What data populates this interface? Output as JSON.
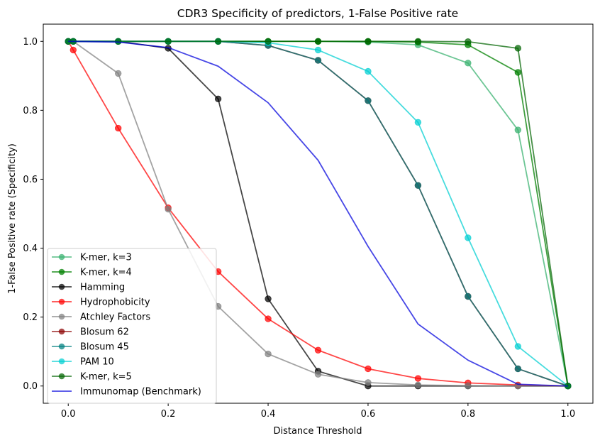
{
  "chart_data": {
    "type": "line",
    "title": "CDR3 Specificity of predictors, 1-False Positive rate",
    "xlabel": "Distance Threshold",
    "ylabel": "1-False Positive rate (Specificity)",
    "xlim": [
      -0.05,
      1.05
    ],
    "ylim": [
      -0.05,
      1.05
    ],
    "xticks": [
      0.0,
      0.2,
      0.4,
      0.6,
      0.8,
      1.0
    ],
    "xtick_labels": [
      "0.0",
      "0.2",
      "0.4",
      "0.6",
      "0.8",
      "1.0"
    ],
    "yticks": [
      0.0,
      0.2,
      0.4,
      0.6,
      0.8,
      1.0
    ],
    "ytick_labels": [
      "0.0",
      "0.2",
      "0.4",
      "0.6",
      "0.8",
      "1.0"
    ],
    "grid": false,
    "legend_position": "lower-left",
    "series": [
      {
        "name": "K-mer, k=3",
        "color": "#3cb371",
        "alpha": 0.75,
        "marker": true,
        "x": [
          0.0,
          0.01,
          0.1,
          0.2,
          0.3,
          0.4,
          0.5,
          0.6,
          0.7,
          0.8,
          0.9,
          1.0
        ],
        "y": [
          1.0,
          1.0,
          1.0,
          1.0,
          1.0,
          1.0,
          1.0,
          0.998,
          0.99,
          0.937,
          0.743,
          0.0
        ]
      },
      {
        "name": "K-mer, k=4",
        "color": "#008000",
        "alpha": 0.75,
        "marker": true,
        "x": [
          0.0,
          0.01,
          0.1,
          0.2,
          0.3,
          0.4,
          0.5,
          0.6,
          0.7,
          0.8,
          0.9,
          1.0
        ],
        "y": [
          1.0,
          1.0,
          1.0,
          1.0,
          1.0,
          1.0,
          1.0,
          1.0,
          0.998,
          0.99,
          0.91,
          0.0
        ]
      },
      {
        "name": "Hamming",
        "color": "#000000",
        "alpha": 0.72,
        "marker": true,
        "x": [
          0.0,
          0.01,
          0.1,
          0.2,
          0.3,
          0.4,
          0.5,
          0.6,
          0.7,
          0.8,
          0.9,
          1.0
        ],
        "y": [
          1.0,
          1.0,
          1.0,
          0.98,
          0.833,
          0.253,
          0.043,
          0.0,
          0.0,
          0.0,
          0.0,
          0.0
        ]
      },
      {
        "name": "Hydrophobicity",
        "color": "#ff0000",
        "alpha": 0.72,
        "marker": true,
        "x": [
          0.0,
          0.01,
          0.1,
          0.2,
          0.3,
          0.4,
          0.5,
          0.6,
          0.7,
          0.8,
          0.9,
          1.0
        ],
        "y": [
          1.0,
          0.975,
          0.748,
          0.517,
          0.332,
          0.195,
          0.104,
          0.05,
          0.022,
          0.009,
          0.003,
          0.0
        ]
      },
      {
        "name": "Atchley Factors",
        "color": "#808080",
        "alpha": 0.72,
        "marker": true,
        "x": [
          0.0,
          0.01,
          0.1,
          0.2,
          0.3,
          0.4,
          0.5,
          0.6,
          0.7,
          0.8,
          0.9,
          1.0
        ],
        "y": [
          1.0,
          1.0,
          0.907,
          0.513,
          0.231,
          0.093,
          0.034,
          0.01,
          0.003,
          0.001,
          0.0,
          0.0
        ]
      },
      {
        "name": "Blosum 62",
        "color": "#8b0000",
        "alpha": 0.72,
        "marker": true,
        "x": [
          0.0,
          0.01,
          0.1,
          0.2,
          0.3,
          0.4,
          0.5,
          0.6,
          0.7,
          0.8,
          0.9,
          1.0
        ],
        "y": [
          1.0,
          1.0,
          1.0,
          1.0,
          1.0,
          0.988,
          0.945,
          0.828,
          0.582,
          0.26,
          0.05,
          0.0
        ]
      },
      {
        "name": "Blosum 45",
        "color": "#008080",
        "alpha": 0.72,
        "marker": true,
        "x": [
          0.0,
          0.01,
          0.1,
          0.2,
          0.3,
          0.4,
          0.5,
          0.6,
          0.7,
          0.8,
          0.9,
          1.0
        ],
        "y": [
          1.0,
          1.0,
          1.0,
          1.0,
          1.0,
          0.988,
          0.945,
          0.828,
          0.582,
          0.26,
          0.05,
          0.0
        ]
      },
      {
        "name": "PAM 10",
        "color": "#00ced1",
        "alpha": 0.72,
        "marker": true,
        "x": [
          0.0,
          0.01,
          0.1,
          0.2,
          0.3,
          0.4,
          0.5,
          0.6,
          0.7,
          0.8,
          0.9,
          1.0
        ],
        "y": [
          1.0,
          1.0,
          1.0,
          1.0,
          1.0,
          0.996,
          0.975,
          0.913,
          0.765,
          0.43,
          0.115,
          0.0
        ]
      },
      {
        "name": "K-mer, k=5",
        "color": "#006400",
        "alpha": 0.72,
        "marker": true,
        "x": [
          0.0,
          0.01,
          0.1,
          0.2,
          0.3,
          0.4,
          0.5,
          0.6,
          0.7,
          0.8,
          0.9,
          1.0
        ],
        "y": [
          1.0,
          1.0,
          1.0,
          1.0,
          1.0,
          1.0,
          1.0,
          1.0,
          1.0,
          0.999,
          0.98,
          0.0
        ]
      },
      {
        "name": "Immunomap (Benchmark)",
        "color": "#0000dd",
        "alpha": 0.72,
        "marker": false,
        "x": [
          0.0,
          0.1,
          0.2,
          0.3,
          0.4,
          0.5,
          0.6,
          0.7,
          0.8,
          0.9,
          1.0
        ],
        "y": [
          1.0,
          0.998,
          0.982,
          0.928,
          0.822,
          0.655,
          0.405,
          0.18,
          0.075,
          0.005,
          0.0
        ]
      }
    ]
  }
}
